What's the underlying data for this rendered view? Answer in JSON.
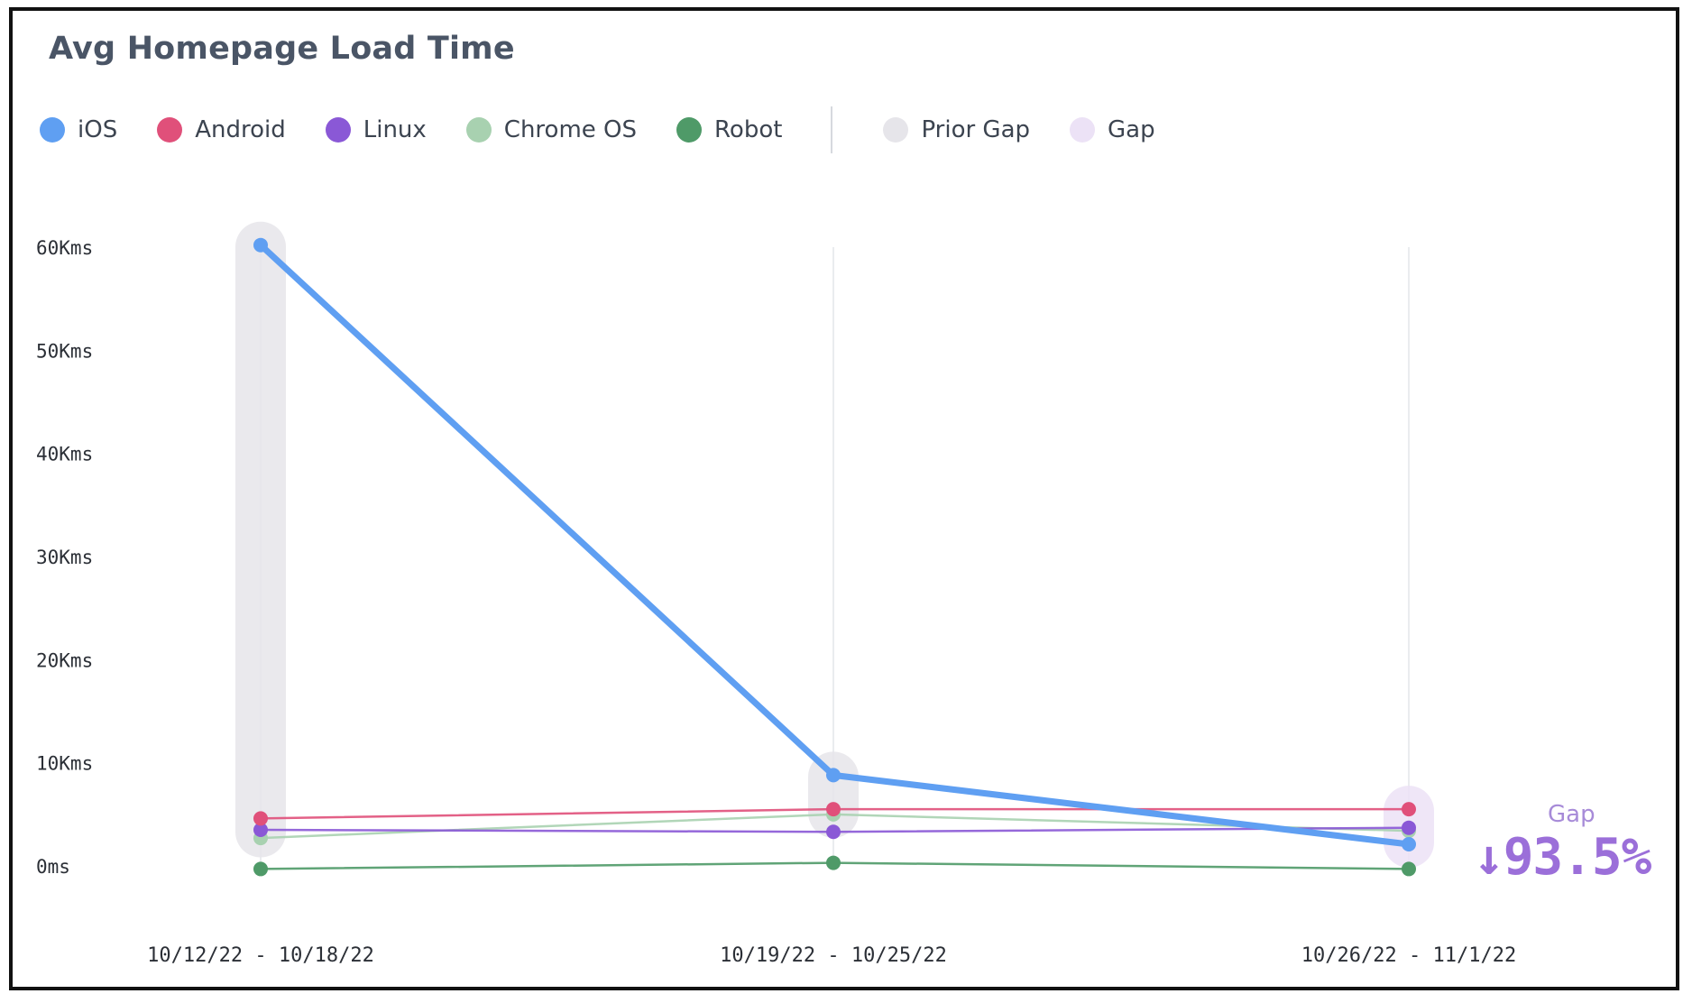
{
  "chart_data": {
    "type": "line",
    "title": "Avg Homepage Load Time",
    "xlabel": "",
    "ylabel": "",
    "categories": [
      "10/12/22 - 10/18/22",
      "10/19/22 - 10/25/22",
      "10/26/22 - 11/1/22"
    ],
    "ylim": [
      0,
      60000
    ],
    "yticks": [
      {
        "value": 0,
        "label": "0ms"
      },
      {
        "value": 10000,
        "label": "10Kms"
      },
      {
        "value": 20000,
        "label": "20Kms"
      },
      {
        "value": 30000,
        "label": "30Kms"
      },
      {
        "value": 40000,
        "label": "40Kms"
      },
      {
        "value": 50000,
        "label": "50Kms"
      },
      {
        "value": 60000,
        "label": "60Kms"
      }
    ],
    "grid": "vertical lines at each category",
    "legend_position": "top-left",
    "series": [
      {
        "name": "iOS",
        "color": "#5f9ff2",
        "values": [
          60200,
          8800,
          2100
        ]
      },
      {
        "name": "Android",
        "color": "#e0507a",
        "values": [
          4600,
          5500,
          5500
        ]
      },
      {
        "name": "Linux",
        "color": "#8a58d6",
        "values": [
          3500,
          3300,
          3700
        ]
      },
      {
        "name": "Chrome OS",
        "color": "#a8d1b0",
        "values": [
          2700,
          5000,
          3400
        ]
      },
      {
        "name": "Robot",
        "color": "#4f9a68",
        "values": [
          -300,
          300,
          -300
        ]
      }
    ],
    "highlight_bands": [
      {
        "category_index": 0,
        "kind": "Prior Gap",
        "range": [
          3100,
          60200
        ]
      },
      {
        "category_index": 1,
        "kind": "Prior Gap",
        "range": [
          5000,
          8800
        ]
      },
      {
        "category_index": 2,
        "kind": "Gap",
        "range": [
          2100,
          5500
        ]
      }
    ],
    "band_legend": [
      {
        "name": "Prior Gap",
        "color": "#e6e5ea"
      },
      {
        "name": "Gap",
        "color": "#ece2f6"
      }
    ],
    "annotation": {
      "label": "Gap",
      "value": "↓93.5%",
      "color": "#9b6fd9"
    }
  }
}
